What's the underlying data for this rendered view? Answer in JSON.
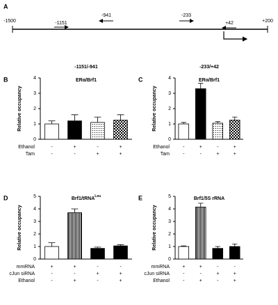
{
  "diagram": {
    "panel": "A",
    "start": "-1500",
    "end": "+200",
    "primers": [
      {
        "label": "-1151",
        "direction": "right"
      },
      {
        "label": "-941",
        "direction": "left"
      },
      {
        "label": "-233",
        "direction": "right"
      },
      {
        "label": "+42",
        "direction": "left"
      }
    ]
  },
  "chart_data": [
    {
      "type": "bar",
      "panel": "B",
      "header": "-1151/-941",
      "title": "ERα/Brf1",
      "ylabel": "Relative occupancy",
      "ylim": [
        0,
        4
      ],
      "yticks": [
        0,
        1,
        2,
        3,
        4
      ],
      "values": [
        1.0,
        1.2,
        1.1,
        1.25
      ],
      "errors": [
        0.2,
        0.4,
        0.35,
        0.35
      ],
      "fills": [
        "white",
        "black",
        "dots",
        "checker"
      ],
      "conditions": [
        {
          "label": "Ethanol",
          "signs": [
            "-",
            "+",
            "-",
            "+"
          ]
        },
        {
          "label": "Tam",
          "signs": [
            "-",
            "-",
            "+",
            "+"
          ]
        }
      ]
    },
    {
      "type": "bar",
      "panel": "C",
      "header": "-233/+42",
      "title": "ERα/Brf1",
      "ylabel": "Relative occupancy",
      "ylim": [
        0,
        4
      ],
      "yticks": [
        0,
        1,
        2,
        3,
        4
      ],
      "values": [
        1.0,
        3.3,
        1.05,
        1.25
      ],
      "errors": [
        0.1,
        0.35,
        0.1,
        0.2
      ],
      "fills": [
        "white",
        "black",
        "dots",
        "checker"
      ],
      "conditions": [
        {
          "label": "Ethanol",
          "signs": [
            "-",
            "+",
            "-",
            "+"
          ]
        },
        {
          "label": "Tam",
          "signs": [
            "-",
            "-",
            "+",
            "+"
          ]
        }
      ]
    },
    {
      "type": "bar",
      "panel": "D",
      "title": "Brf1/tRNA",
      "title_superscript": "Leu",
      "ylabel": "Relative occupancy",
      "ylim": [
        0,
        5
      ],
      "yticks": [
        0,
        1,
        2,
        3,
        4,
        5
      ],
      "values": [
        1.0,
        3.7,
        0.85,
        1.05
      ],
      "errors": [
        0.3,
        0.3,
        0.1,
        0.1
      ],
      "fills": [
        "white",
        "stripes",
        "black",
        "black"
      ],
      "conditions": [
        {
          "label": "mmRNA",
          "signs": [
            "+",
            "+",
            "-",
            "-"
          ]
        },
        {
          "label": "cJun siRNA",
          "signs": [
            "-",
            "-",
            "+",
            "+"
          ]
        },
        {
          "label": "Ethanol",
          "signs": [
            "-",
            "+",
            "-",
            "+"
          ]
        }
      ]
    },
    {
      "type": "bar",
      "panel": "E",
      "title": "Brf1/5S rRNA",
      "ylabel": "Relative occupancy",
      "ylim": [
        0,
        5
      ],
      "yticks": [
        0,
        1,
        2,
        3,
        4,
        5
      ],
      "values": [
        1.0,
        4.15,
        0.85,
        1.0
      ],
      "errors": [
        0.05,
        0.3,
        0.15,
        0.2
      ],
      "fills": [
        "white",
        "stripes",
        "black",
        "black"
      ],
      "conditions": [
        {
          "label": "mmRNA",
          "signs": [
            "+",
            "+",
            "-",
            "-"
          ]
        },
        {
          "label": "cJun siRNA",
          "signs": [
            "-",
            "-",
            "+",
            "+"
          ]
        },
        {
          "label": "Ethanol",
          "signs": [
            "-",
            "+",
            "-",
            "+"
          ]
        }
      ]
    }
  ]
}
